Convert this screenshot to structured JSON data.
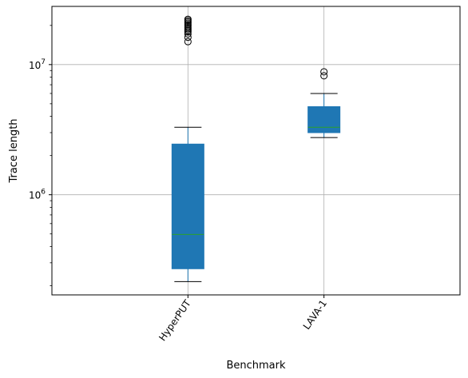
{
  "chart_data": {
    "type": "box",
    "title": "",
    "xlabel": "Benchmark",
    "ylabel": "Trace length",
    "yscale": "log",
    "ylim": [
      170000,
      28000000
    ],
    "grid": true,
    "categories": [
      "HyperPUT",
      "LAVA-1"
    ],
    "y_tick_labels": [
      {
        "label_base": "10",
        "label_exp": "6",
        "value": 1000000
      },
      {
        "label_base": "10",
        "label_exp": "7",
        "value": 10000000
      }
    ],
    "boxes": [
      {
        "name": "HyperPUT",
        "whisker_low": 215000,
        "q1": 270000,
        "median": 495000,
        "q3": 2450000,
        "whisker_high": 3300000,
        "outliers": [
          15000000,
          16200000,
          17200000,
          17800000,
          18300000,
          18800000,
          19300000,
          19800000,
          20300000,
          20800000,
          21300000,
          21800000,
          22300000
        ]
      },
      {
        "name": "LAVA-1",
        "whisker_low": 2750000,
        "q1": 3000000,
        "median": 3300000,
        "q3": 4750000,
        "whisker_high": 6000000,
        "outliers": [
          8200000,
          8800000
        ]
      }
    ],
    "colors": {
      "box_fill": "#1f77b4",
      "median": "#2ca02c",
      "grid": "#b0b0b0"
    }
  }
}
